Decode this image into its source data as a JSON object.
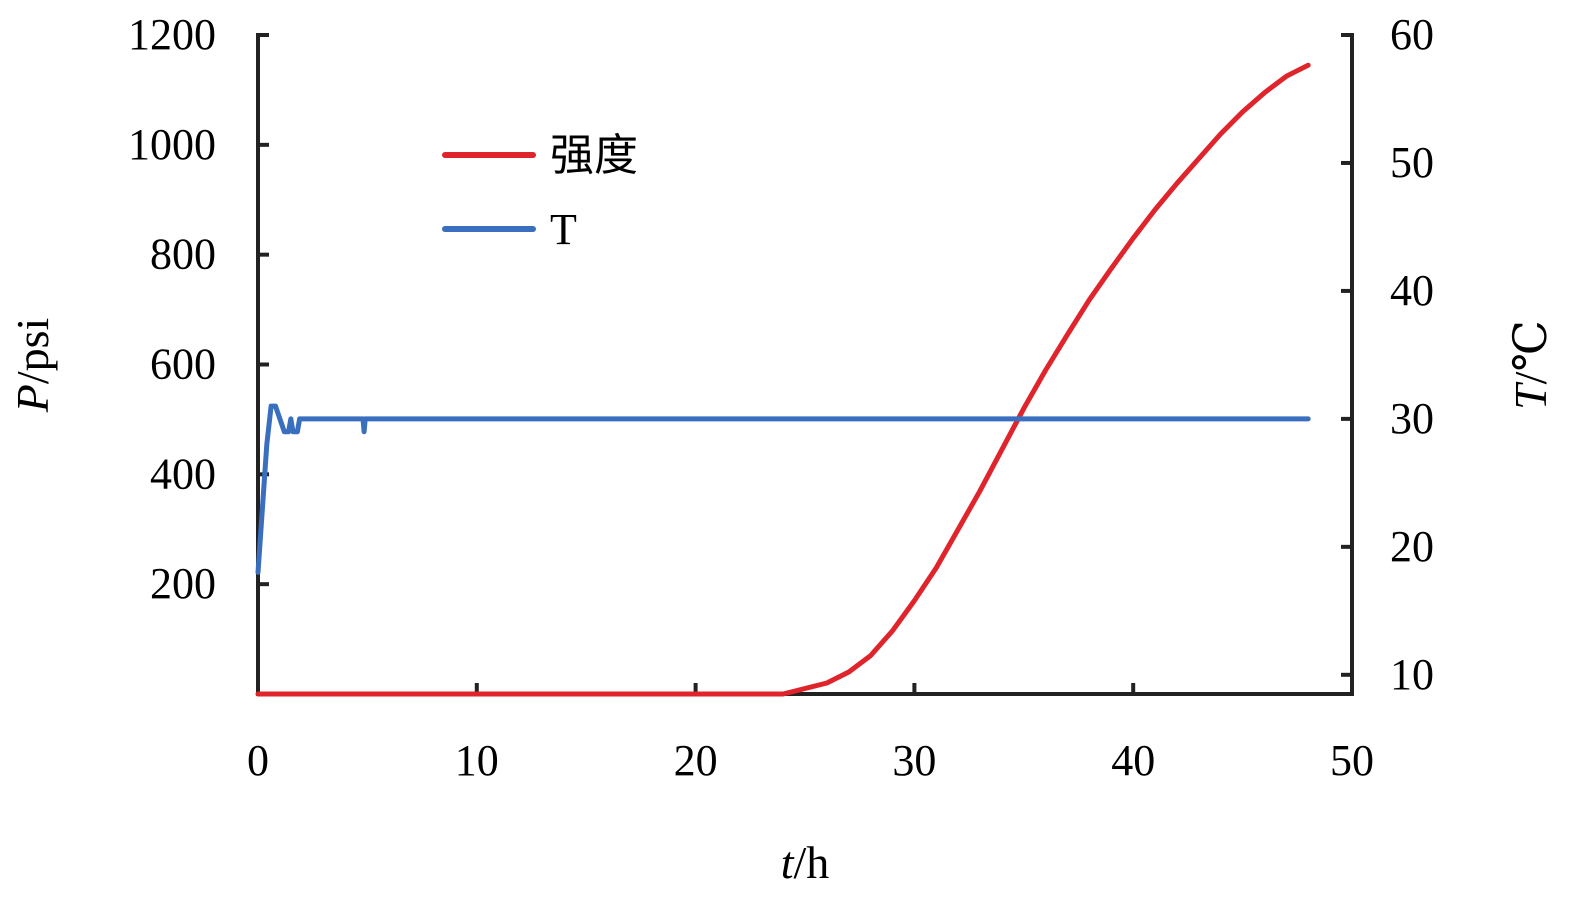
{
  "chart_data": {
    "type": "line",
    "xlabel": {
      "var": "t",
      "unit": "/h"
    },
    "ylabel_left": {
      "var": "P",
      "unit": "/psi"
    },
    "ylabel_right": {
      "var": "T",
      "unit": "/℃"
    },
    "xlim": [
      0,
      50
    ],
    "ylim_left": [
      0,
      1200
    ],
    "ylim_right": [
      8.5,
      60
    ],
    "xticks": [
      0,
      10,
      20,
      30,
      40,
      50
    ],
    "yticks_left": [
      200,
      400,
      600,
      800,
      1000,
      1200
    ],
    "yticks_right": [
      10,
      20,
      30,
      40,
      50,
      60
    ],
    "grid": false,
    "legend_position": "upper-left",
    "series": [
      {
        "name": "强度",
        "axis": "left",
        "color": "#e0242b",
        "x": [
          0,
          5,
          10,
          15,
          20,
          22,
          24,
          24.5,
          25,
          26,
          27,
          28,
          29,
          30,
          31,
          32,
          33,
          34,
          35,
          36,
          37,
          38,
          39,
          40,
          41,
          42,
          43,
          44,
          45,
          46,
          47,
          48
        ],
        "y": [
          0,
          0,
          0,
          0,
          0,
          0,
          0,
          5,
          10,
          20,
          40,
          70,
          115,
          170,
          230,
          300,
          370,
          445,
          520,
          590,
          655,
          718,
          775,
          830,
          882,
          930,
          975,
          1020,
          1060,
          1095,
          1125,
          1145
        ]
      },
      {
        "name": "T",
        "axis": "right",
        "color": "#3a6fbf",
        "x": [
          0,
          0.4,
          0.6,
          0.8,
          1.0,
          1.2,
          1.4,
          1.5,
          1.6,
          1.8,
          1.9,
          2.0,
          4.8,
          4.85,
          4.9,
          48
        ],
        "y": [
          18,
          28,
          31,
          31,
          30,
          29,
          29,
          30,
          29,
          29,
          30,
          30,
          30,
          29,
          30,
          30
        ]
      }
    ]
  }
}
